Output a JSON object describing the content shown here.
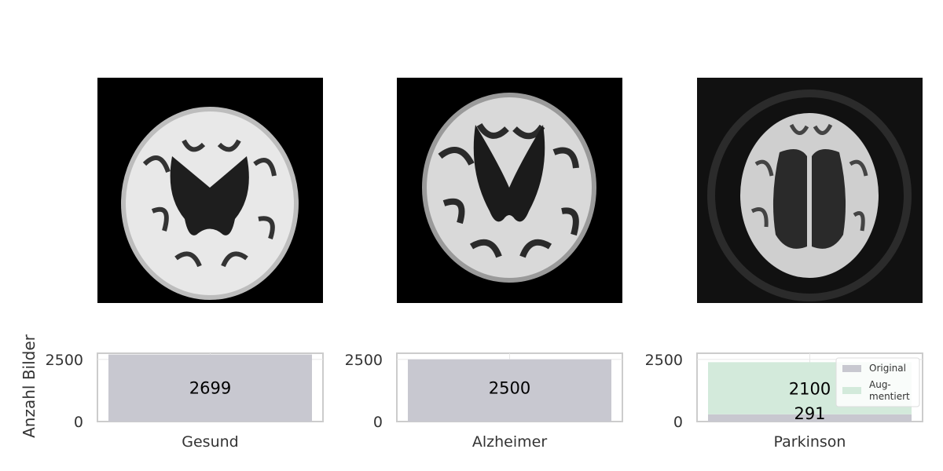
{
  "chart_data": {
    "type": "bar",
    "stacked": true,
    "ylabel": "Anzahl Bilder",
    "yticks": [
      0,
      2500
    ],
    "ylim": [
      0,
      2750
    ],
    "categories": [
      "Gesund",
      "Alzheimer",
      "Parkinson"
    ],
    "series": [
      {
        "name": "Original",
        "values": [
          2699,
          2500,
          291
        ],
        "color": "#c8c8d0"
      },
      {
        "name": "Aug-\nmentiert",
        "values": [
          0,
          0,
          2100
        ],
        "color": "#d3eadb"
      }
    ],
    "value_labels": [
      [
        "2699"
      ],
      [
        "2500"
      ],
      [
        "2100",
        "291"
      ]
    ],
    "legend": {
      "placement": "upper-right",
      "panel": "Parkinson",
      "entries": [
        "Original",
        "Aug-",
        "mentiert"
      ]
    },
    "grid": true,
    "images": [
      {
        "panel": "Gesund",
        "icon": "mri-brain-scan-healthy"
      },
      {
        "panel": "Alzheimer",
        "icon": "mri-brain-scan-alzheimer"
      },
      {
        "panel": "Parkinson",
        "icon": "mri-brain-scan-parkinson"
      }
    ]
  }
}
